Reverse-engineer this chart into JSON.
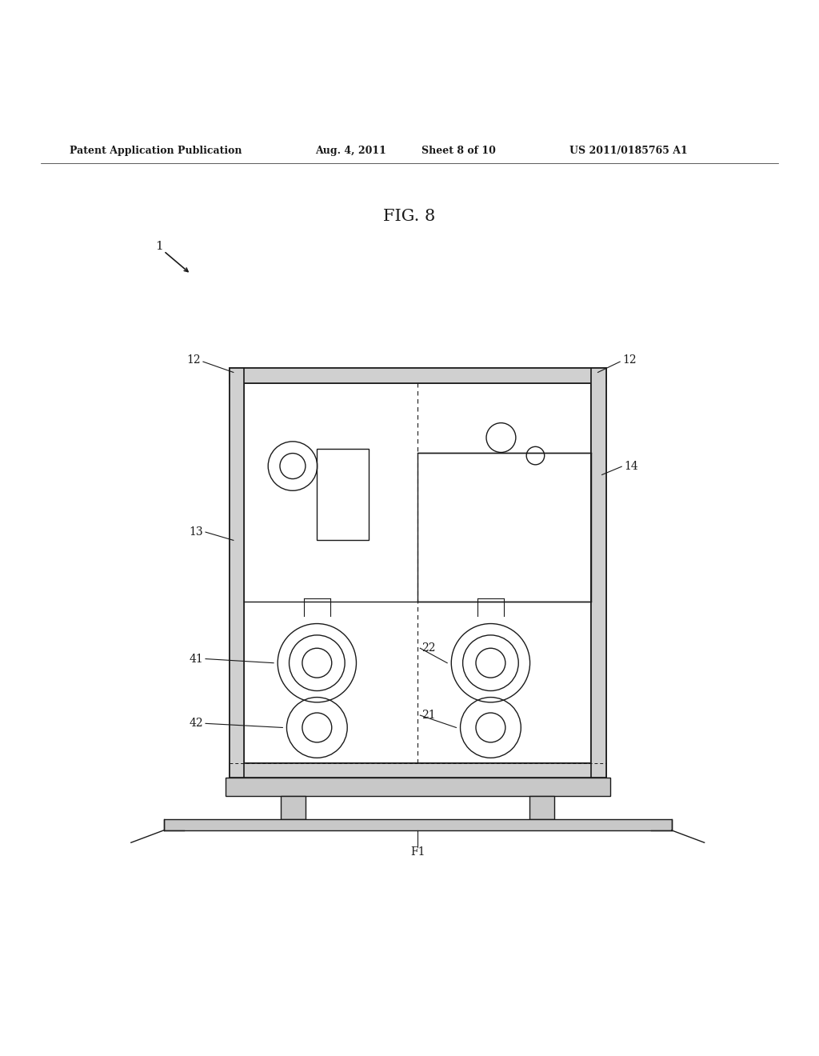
{
  "bg_color": "#ffffff",
  "lc": "#1a1a1a",
  "header_text": "Patent Application Publication",
  "header_date": "Aug. 4, 2011",
  "header_sheet": "Sheet 8 of 10",
  "header_patent": "US 2011/0185765 A1",
  "fig_label": "FIG. 8",
  "label_1": "1",
  "label_12a": "12",
  "label_12b": "12",
  "label_13": "13",
  "label_14": "14",
  "label_41": "41",
  "label_22": "22",
  "label_42": "42",
  "label_21": "21",
  "label_F1": "F1",
  "BL": 0.28,
  "BR": 0.74,
  "BT": 0.695,
  "BB": 0.195,
  "WT": 0.018
}
